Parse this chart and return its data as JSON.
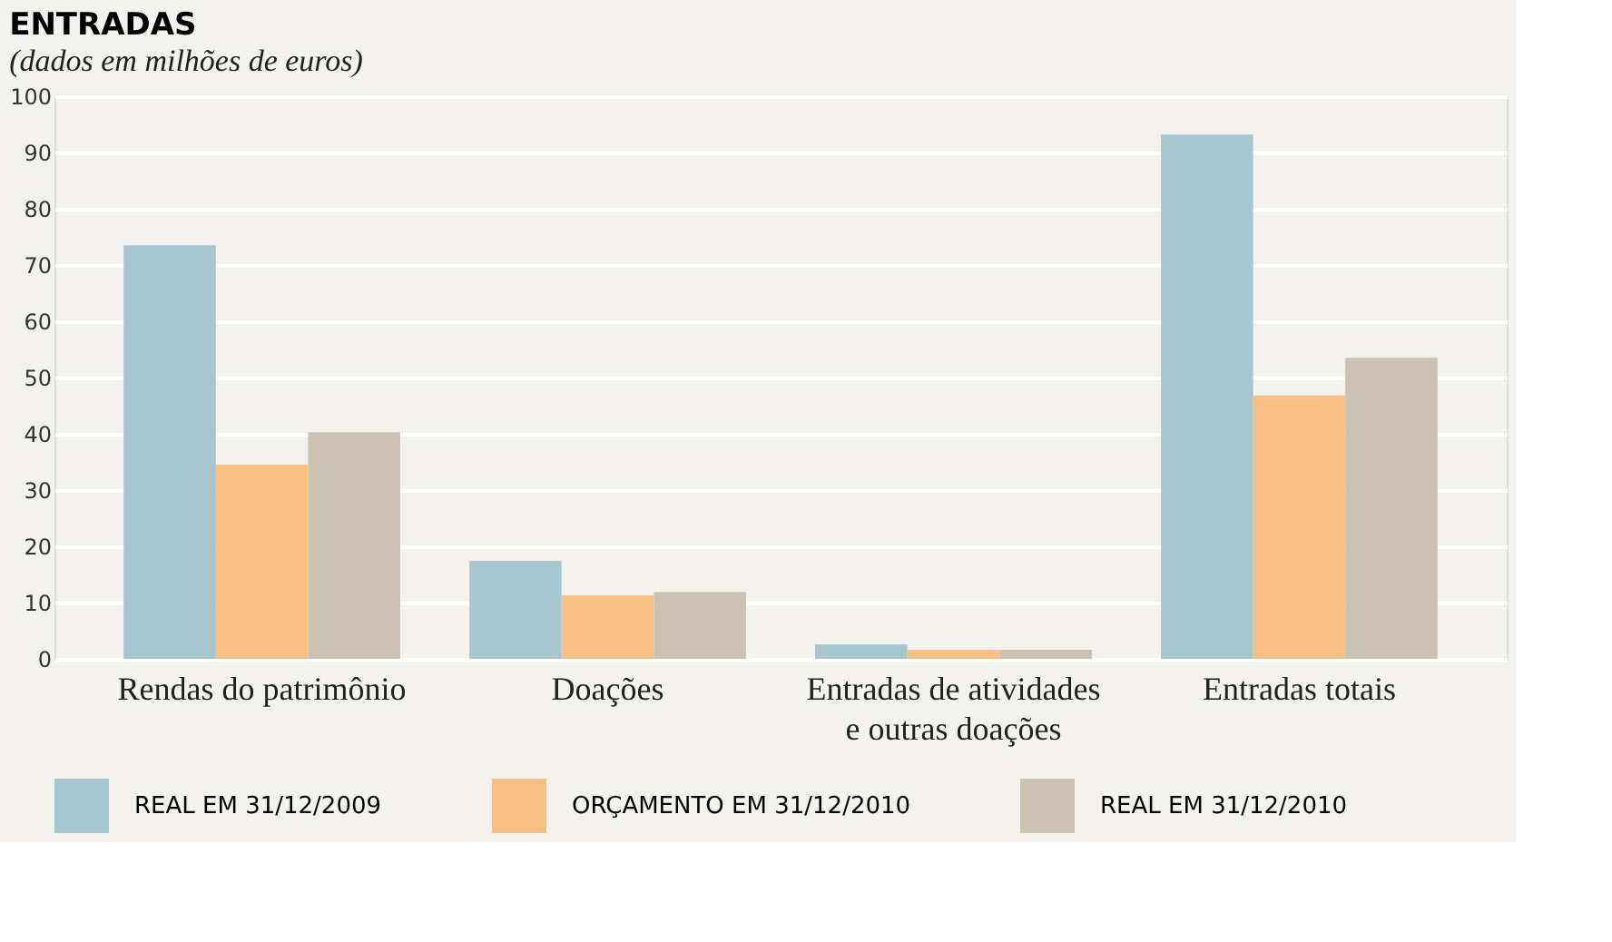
{
  "chart_data": {
    "type": "bar",
    "title": "ENTRADAS",
    "subtitle": "(dados em milhões de euros)",
    "categories": [
      "Rendas do patrimônio",
      "Doações",
      "Entradas de atividades e outras doações",
      "Entradas totais"
    ],
    "series": [
      {
        "name": "REAL EM 31/12/2009",
        "color": "#a7c7cf",
        "values": [
          73.5,
          17.4,
          2.6,
          93.2
        ]
      },
      {
        "name": "ORÇAMENTO EM 31/12/2010",
        "color": "#f8bf84",
        "values": [
          34.5,
          11.3,
          1.6,
          46.8
        ]
      },
      {
        "name": "REAL EM 31/12/2010",
        "color": "#cac3b4",
        "values": [
          40.3,
          11.9,
          1.6,
          53.5
        ]
      }
    ],
    "ylim": [
      0,
      100
    ],
    "yticks": [
      0,
      10,
      20,
      30,
      40,
      50,
      60,
      70,
      80,
      90,
      100
    ],
    "grid": "y",
    "legend": "bottom"
  }
}
